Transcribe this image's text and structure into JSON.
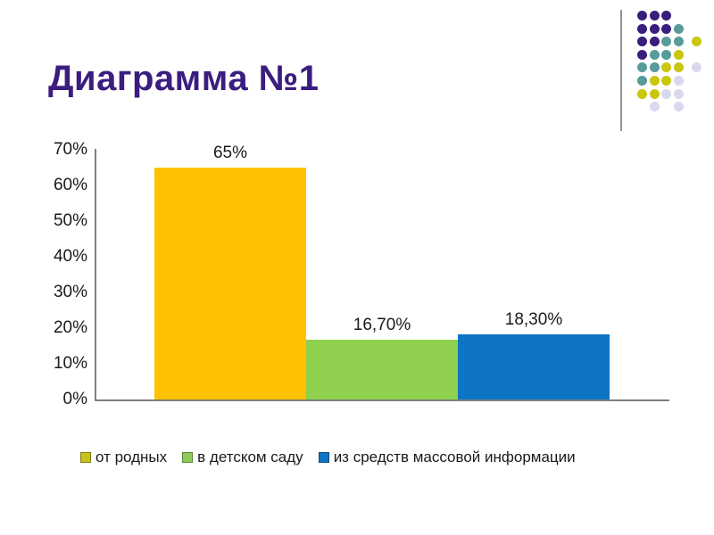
{
  "slide": {
    "title": "Диаграмма №1",
    "title_color": "#3B1D80",
    "background": "#ffffff"
  },
  "decoration": {
    "line_color": "#90909E",
    "colors": {
      "P": "#3A1E7C",
      "T": "#579B9B",
      "Y": "#C8C70D",
      "L": "#D8D8EE"
    },
    "pattern": [
      [
        [
          0,
          "P"
        ],
        [
          1,
          "P"
        ],
        [
          2,
          "P"
        ]
      ],
      [
        [
          0,
          "P"
        ],
        [
          1,
          "P"
        ],
        [
          2,
          "P"
        ],
        [
          3,
          "T"
        ]
      ],
      [
        [
          0,
          "P"
        ],
        [
          1,
          "P"
        ],
        [
          2,
          "T"
        ],
        [
          3,
          "T"
        ],
        [
          4.5,
          "Y"
        ]
      ],
      [
        [
          0,
          "P"
        ],
        [
          1,
          "T"
        ],
        [
          2,
          "T"
        ],
        [
          3,
          "Y"
        ]
      ],
      [
        [
          0,
          "T"
        ],
        [
          1,
          "T"
        ],
        [
          2,
          "Y"
        ],
        [
          3,
          "Y"
        ],
        [
          4.5,
          "L"
        ]
      ],
      [
        [
          0,
          "T"
        ],
        [
          1,
          "Y"
        ],
        [
          2,
          "Y"
        ],
        [
          3,
          "L"
        ]
      ],
      [
        [
          0,
          "Y"
        ],
        [
          1,
          "Y"
        ],
        [
          2,
          "L"
        ],
        [
          3,
          "L"
        ]
      ],
      [
        [
          1,
          "L"
        ],
        [
          3,
          "L"
        ]
      ]
    ]
  },
  "chart_data": {
    "type": "bar",
    "title": "",
    "categories": [
      "от родных",
      "в детском саду",
      "из средств массовой информации"
    ],
    "values": [
      65,
      16.7,
      18.3
    ],
    "data_labels": [
      "65%",
      "16,70%",
      "18,30%"
    ],
    "bar_colors": [
      "#FFC200",
      "#8FD04E",
      "#0E74C4"
    ],
    "y_ticks": [
      "70%",
      "60%",
      "50%",
      "40%",
      "30%",
      "20%",
      "10%",
      "0%"
    ],
    "ylim": [
      0,
      70
    ],
    "grid": false,
    "axis_color": "#7F7F7F",
    "legend_position": "bottom",
    "legend": [
      {
        "label": "от родных",
        "color": "#C8C11D"
      },
      {
        "label": "в детском саду",
        "color": "#90CB5A"
      },
      {
        "label": "из средств массовой информации",
        "color": "#1173C2"
      }
    ]
  }
}
